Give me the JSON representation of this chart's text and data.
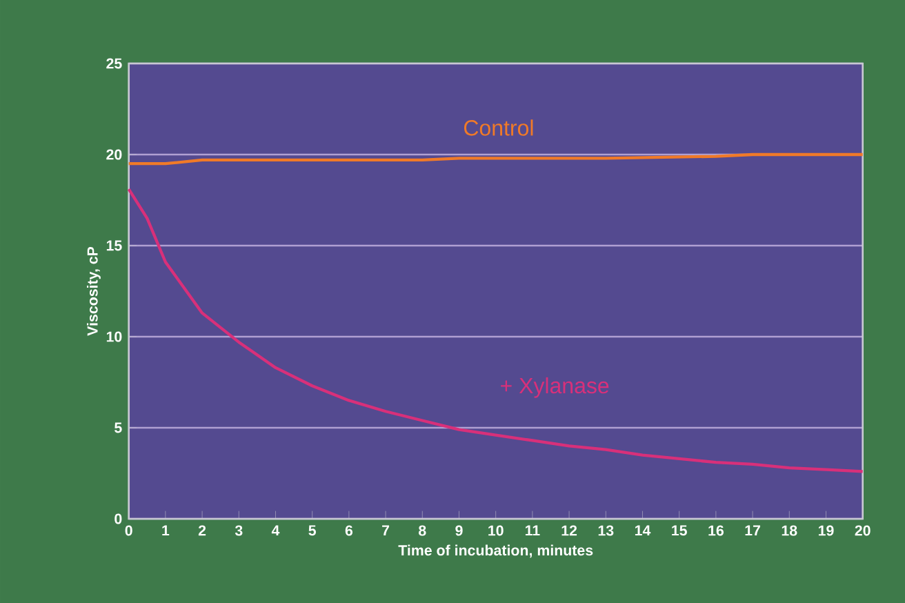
{
  "chart_data": {
    "type": "line",
    "xlabel": "Time of incubation, minutes",
    "ylabel": "Viscosity, cP",
    "xlim": [
      0,
      20
    ],
    "ylim": [
      0,
      25
    ],
    "xticks": [
      0,
      1,
      2,
      3,
      4,
      5,
      6,
      7,
      8,
      9,
      10,
      11,
      12,
      13,
      14,
      15,
      16,
      17,
      18,
      19,
      20
    ],
    "yticks": [
      0,
      5,
      10,
      15,
      20,
      25
    ],
    "grid": "y",
    "marker": "none",
    "line_style": "solid",
    "series": [
      {
        "name": "Control",
        "color": "#f07a28",
        "x": [
          0,
          1,
          2,
          8,
          9,
          13,
          16,
          17,
          20
        ],
        "values": [
          19.5,
          19.5,
          19.7,
          19.7,
          19.8,
          19.8,
          19.9,
          20.0,
          20.0
        ]
      },
      {
        "name": "+ Xylanase",
        "color": "#d8307a",
        "x": [
          0,
          0.5,
          1,
          2,
          3,
          4,
          5,
          6,
          7,
          8,
          9,
          10,
          11,
          12,
          13,
          14,
          15,
          16,
          17,
          18,
          19,
          20
        ],
        "values": [
          18.1,
          16.5,
          14.1,
          11.3,
          9.7,
          8.3,
          7.3,
          6.5,
          5.9,
          5.4,
          4.9,
          4.6,
          4.3,
          4.0,
          3.8,
          3.5,
          3.3,
          3.1,
          3.0,
          2.8,
          2.7,
          2.6
        ]
      }
    ]
  }
}
